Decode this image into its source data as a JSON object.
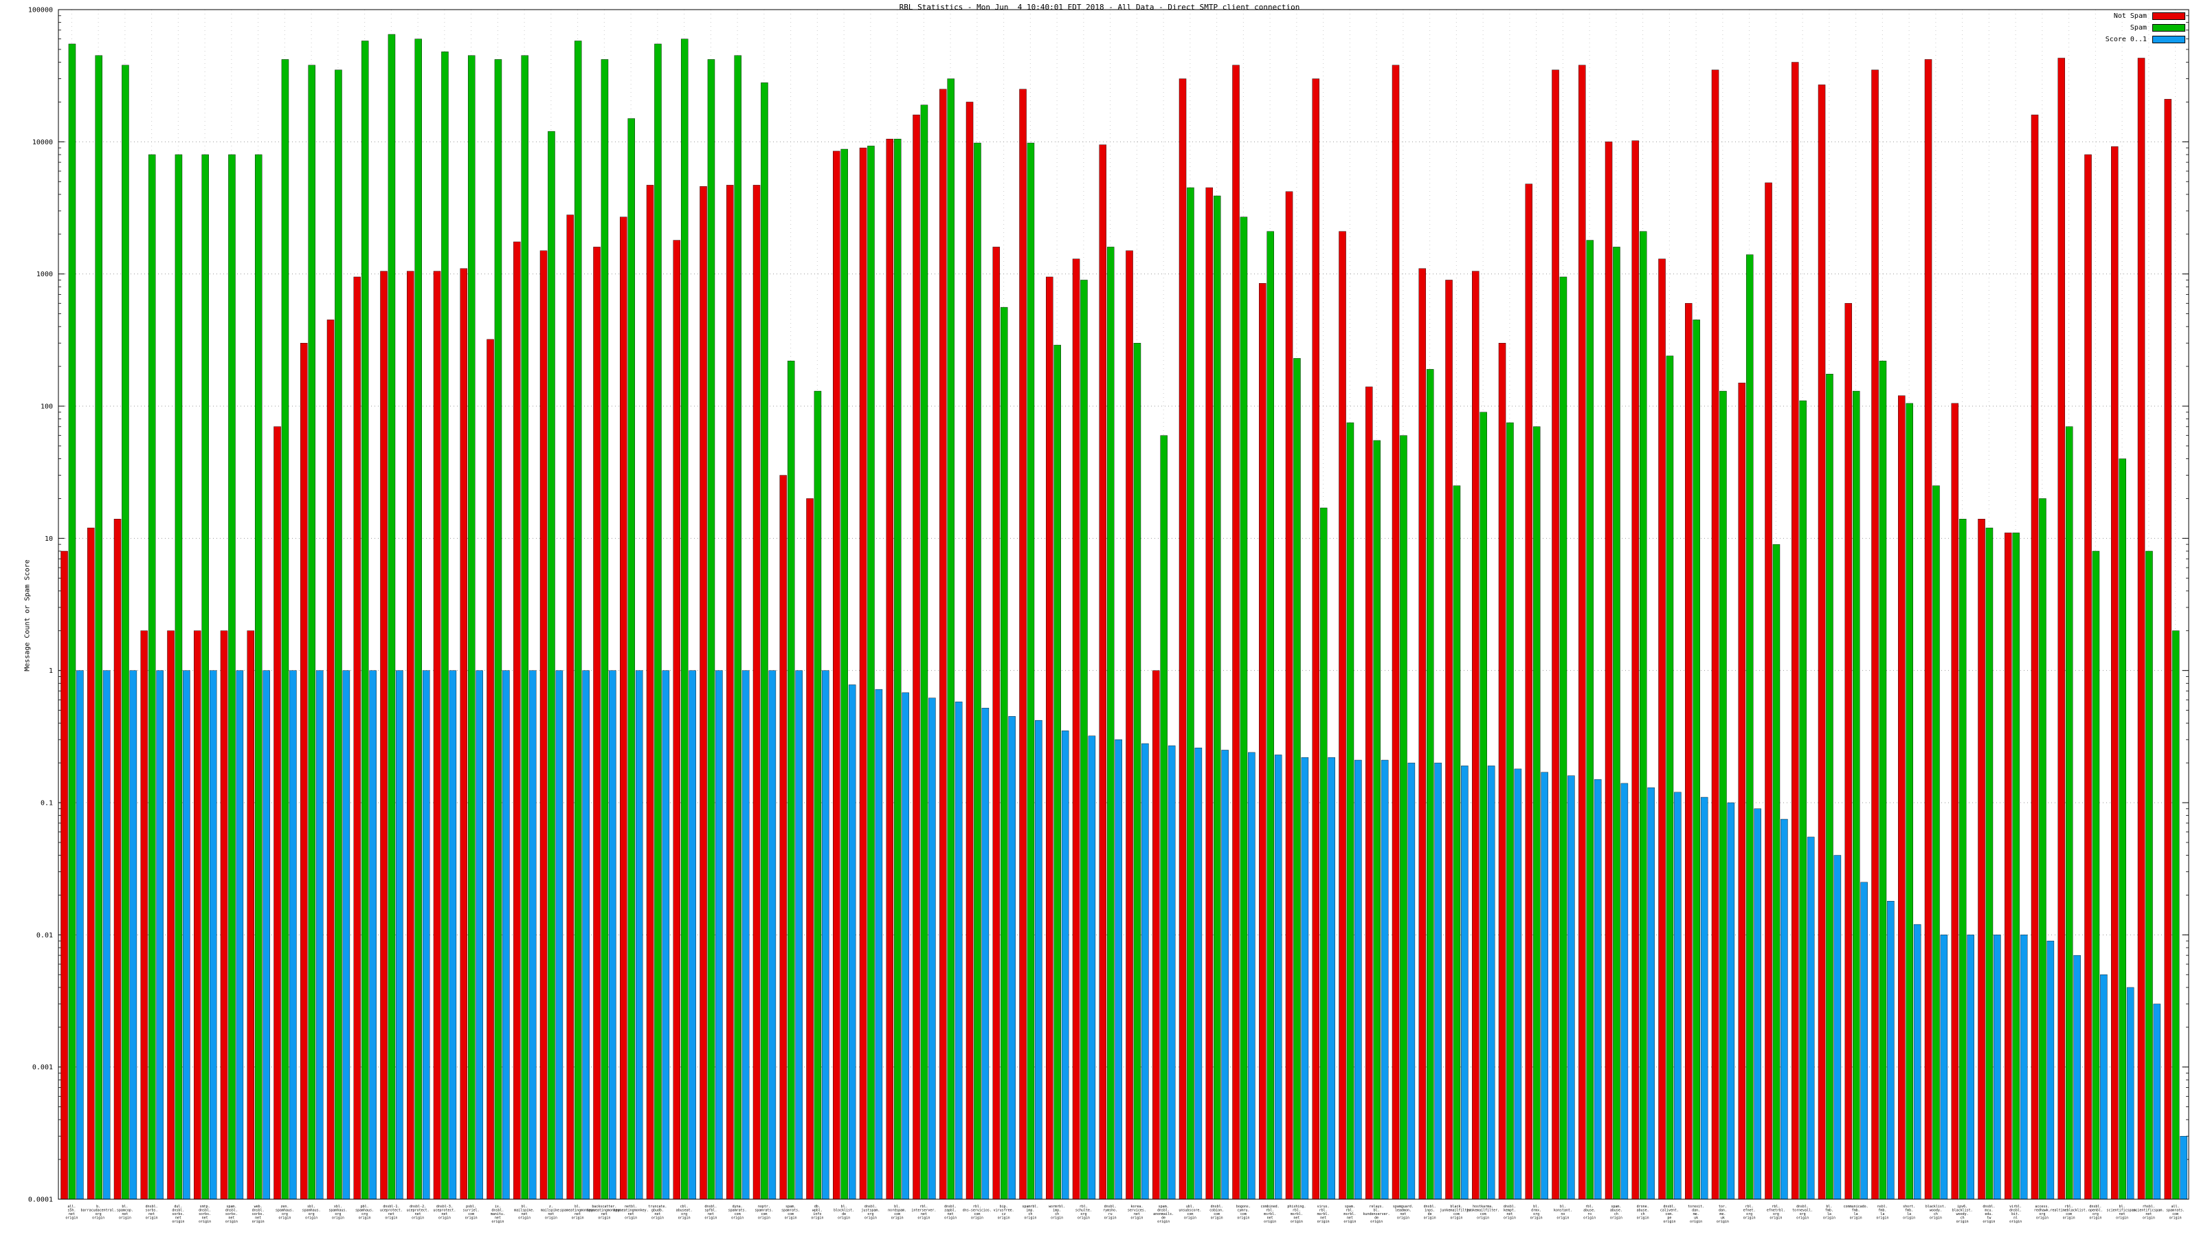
{
  "title": "RBL Statistics - Mon Jun  4 10:40:01 EDT 2018 - All Data - Direct SMTP client connection",
  "y_axis_label": "Message Count or Spam Score",
  "legend": [
    {
      "label": "Not Spam",
      "color": "#e60000"
    },
    {
      "label": "Spam",
      "color": "#00b800"
    },
    {
      "label": "Score 0..1",
      "color": "#0f9bf0"
    }
  ],
  "chart_data": {
    "type": "bar",
    "scale": "log",
    "ylim": [
      0.0001,
      100000
    ],
    "y_ticks": [
      "100000",
      "10000",
      "1000",
      "100",
      "10",
      "1",
      "0.1",
      "0.01",
      "0.001",
      "0.0001"
    ],
    "grid": true,
    "legend_position": "top-right",
    "x_label_suffix": "origin",
    "categories": [
      "all.s5h.net",
      "b.barracudacentral.org",
      "bl.spamcop.net",
      "dnsbl.sorbs.net",
      "dul.dnsbl.sorbs.net",
      "smtp.dnsbl.sorbs.net",
      "spam.dnsbl.sorbs.net",
      "web.dnsbl.sorbs.net",
      "zen.spamhaus.org",
      "sbl.spamhaus.org",
      "xbl.spamhaus.org",
      "pbl.spamhaus.org",
      "dnsbl-1.uceprotect.net",
      "dnsbl-2.uceprotect.net",
      "dnsbl-3.uceprotect.net",
      "psbl.surriel.com",
      "ix.dnsbl.manitu.net",
      "bl.mailspike.net",
      "z.mailspike.net",
      "bl.spameatingmonkey.net",
      "backscatter.spameatingmonkey.net",
      "netbl.spameatingmonkey.net",
      "truncate.gbudb.net",
      "cbl.abuseat.org",
      "dnsbl.spfbl.net",
      "dyna.spamrats.com",
      "noptr.spamrats.com",
      "spam.spamrats.com",
      "db.wpbl.info",
      "bl.blocklist.de",
      "dnsbl.justspam.org",
      "bl.nordspam.com",
      "rbl.interserver.net",
      "dnsbl.zapbl.net",
      "rbl.dns-servicios.com",
      "bip.virusfree.cz",
      "spamrbl.imp.ch",
      "wormrbl.imp.ch",
      "rbl.schulte.org",
      "dnsbl.rymsho.ru",
      "korea.services.net",
      "spam.dnsbl.anonmails.de",
      "ubl.unsubscore.com",
      "dnsbl.cobion.com",
      "bogons.cymru.com",
      "combined.rbl.msrbl.net",
      "phishing.rbl.msrbl.net",
      "virus.rbl.msrbl.net",
      "spam.rbl.msrbl.net",
      "relays.bl.kundenserver.de",
      "spamguard.leadmon.net",
      "dnsbl.inps.de",
      "black.junkemailfilter.com",
      "hostkarma.junkemailfilter.com",
      "dnsbl.kempt.net",
      "bl.drmx.org",
      "bl.konstant.no",
      "rbl.abuse.ro",
      "spam.abuse.ch",
      "drone.abuse.ch",
      "dnsbl.calivent.com.pe",
      "torexit.dan.me.uk",
      "tor.dan.me.uk",
      "rbl.efnet.org",
      "rbl.efnetrbl.org",
      "dnsbl.tornevall.org",
      "bl.fmb.la",
      "communicado.fmb.la",
      "nsbl.fmb.la",
      "short.fmb.la",
      "blacklist.woody.ch",
      "ipv6.blacklist.woody.ch",
      "dnsbl.mcu.edu.tw",
      "virbl.dnsbl.bit.nl",
      "access.redhawk.org",
      "rbl.realtimeblacklist.com",
      "dnsbl.openbl.org",
      "bl.scientificspam.net",
      "rhsbl.scientificspam.net",
      "all.spamrats.com"
    ],
    "series": [
      {
        "name": "Not Spam",
        "color": "#e60000",
        "values": [
          8,
          12,
          14,
          2,
          2,
          2,
          2,
          2,
          70,
          300,
          450,
          950,
          1050,
          1050,
          1050,
          1100,
          320,
          1750,
          1500,
          2800,
          1600,
          2700,
          4700,
          1800,
          4600,
          4700,
          4700,
          30,
          20,
          8500,
          9000,
          10500,
          16000,
          25000,
          20000,
          1600,
          25000,
          950,
          1300,
          9500,
          1500,
          1,
          30000,
          4500,
          38000,
          850,
          4200,
          30000,
          2100,
          140,
          38000,
          1100,
          900,
          1050,
          300,
          4800,
          35000,
          38000,
          10000,
          10200,
          1300,
          600,
          35000,
          150,
          4900,
          40000,
          27000,
          600,
          35000,
          120,
          42000,
          105,
          14,
          11,
          16000,
          43000,
          8000,
          9200,
          43000,
          21000
        ]
      },
      {
        "name": "Spam",
        "color": "#00b800",
        "values": [
          55000,
          45000,
          38000,
          8000,
          8000,
          8000,
          8000,
          8000,
          42000,
          38000,
          35000,
          58000,
          65000,
          60000,
          48000,
          45000,
          42000,
          45000,
          12000,
          58000,
          42000,
          15000,
          55000,
          60000,
          42000,
          45000,
          28000,
          220,
          130,
          8800,
          9300,
          10500,
          19000,
          30000,
          9800,
          560,
          9800,
          290,
          900,
          1600,
          300,
          60,
          4500,
          3900,
          2700,
          2100,
          230,
          17,
          75,
          55,
          60,
          190,
          25,
          90,
          75,
          70,
          950,
          1800,
          1600,
          2100,
          240,
          450,
          130,
          1400,
          9,
          110,
          175,
          130,
          220,
          105,
          25,
          14,
          12,
          11,
          20,
          70,
          8,
          40,
          8,
          2
        ]
      },
      {
        "name": "Score 0..1",
        "color": "#0f9bf0",
        "values": [
          1,
          1,
          1,
          1,
          1,
          1,
          1,
          1,
          1,
          1,
          1,
          1,
          1,
          1,
          1,
          1,
          1,
          1,
          1,
          1,
          1,
          1,
          1,
          1,
          1,
          1,
          1,
          1,
          1,
          0.78,
          0.72,
          0.68,
          0.62,
          0.58,
          0.52,
          0.45,
          0.42,
          0.35,
          0.32,
          0.3,
          0.28,
          0.27,
          0.26,
          0.25,
          0.24,
          0.23,
          0.22,
          0.22,
          0.21,
          0.21,
          0.2,
          0.2,
          0.19,
          0.19,
          0.18,
          0.17,
          0.16,
          0.15,
          0.14,
          0.13,
          0.12,
          0.11,
          0.1,
          0.09,
          0.075,
          0.055,
          0.04,
          0.025,
          0.018,
          0.012,
          0.01,
          0.01,
          0.01,
          0.01,
          0.009,
          0.007,
          0.005,
          0.004,
          0.003,
          0.0003
        ]
      }
    ]
  }
}
